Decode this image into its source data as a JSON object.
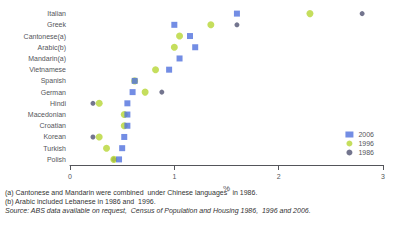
{
  "chart_data": {
    "type": "scatter",
    "orientation": "horizontal",
    "categories": [
      "Italian",
      "Greek",
      "Cantonese(a)",
      "Arabic(b)",
      "Mandarin(a)",
      "Vietnamese",
      "Spanish",
      "German",
      "Hindi",
      "Macedonian",
      "Croatian",
      "Korean",
      "Turkish",
      "Polish"
    ],
    "series": [
      {
        "name": "2006",
        "marker": "square",
        "values": [
          1.6,
          1.0,
          1.15,
          1.2,
          1.05,
          0.95,
          0.62,
          0.6,
          0.55,
          0.55,
          0.55,
          0.52,
          0.5,
          0.47
        ]
      },
      {
        "name": "1996",
        "marker": "circle",
        "values": [
          2.3,
          1.35,
          1.05,
          1.0,
          null,
          0.82,
          0.62,
          0.72,
          0.28,
          0.52,
          0.52,
          0.28,
          0.35,
          0.42
        ]
      },
      {
        "name": "1986",
        "marker": "circle",
        "values": [
          2.8,
          1.6,
          null,
          null,
          null,
          null,
          null,
          0.88,
          0.22,
          null,
          null,
          0.22,
          null,
          0.42
        ]
      }
    ],
    "xlabel": "%",
    "xlim": [
      0,
      3
    ],
    "xticks": [
      0,
      1,
      2,
      3
    ],
    "grid": false,
    "legend": "lower right",
    "annotations": [
      "(a) Cantonese and Mandarin were combined  under Chinese languages'  in 1986.",
      "(b) Arabic included Lebanese in 1986 and  1996.",
      "Source: ABS data available on request,  Census of Population and Housing 1986,  1996 and 2006."
    ]
  }
}
